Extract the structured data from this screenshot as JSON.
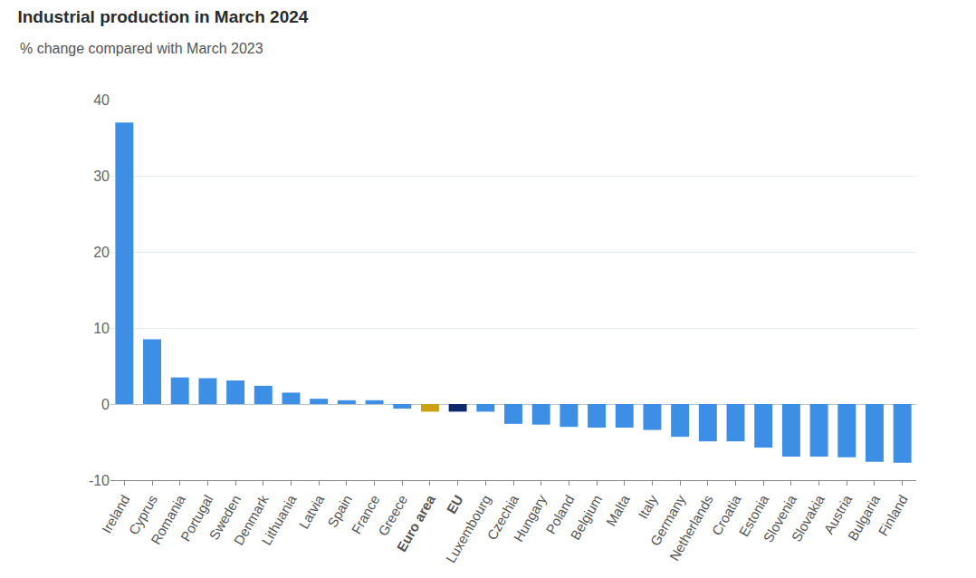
{
  "chart_data": {
    "type": "bar",
    "title": "Industrial production in March 2024",
    "subtitle": "% change compared with March 2023",
    "categories": [
      "Ireland",
      "Cyprus",
      "Romania",
      "Portugal",
      "Sweden",
      "Denmark",
      "Lithuania",
      "Latvia",
      "Spain",
      "France",
      "Greece",
      "Euro area",
      "EU",
      "Luxembourg",
      "Czechia",
      "Hungary",
      "Poland",
      "Belgium",
      "Malta",
      "Italy",
      "Germany",
      "Netherlands",
      "Croatia",
      "Estonia",
      "Slovenia",
      "Slovakia",
      "Austria",
      "Bulgaria",
      "Finland"
    ],
    "values": [
      37.0,
      8.5,
      3.5,
      3.4,
      3.1,
      2.4,
      1.5,
      0.7,
      0.5,
      0.5,
      -0.6,
      -1.0,
      -1.0,
      -1.0,
      -2.6,
      -2.7,
      -3.0,
      -3.1,
      -3.1,
      -3.4,
      -4.3,
      -4.9,
      -4.9,
      -5.7,
      -6.9,
      -6.9,
      -7.0,
      -7.6,
      -7.7
    ],
    "colors": [
      "#3d8fe5",
      "#3d8fe5",
      "#3d8fe5",
      "#3d8fe5",
      "#3d8fe5",
      "#3d8fe5",
      "#3d8fe5",
      "#3d8fe5",
      "#3d8fe5",
      "#3d8fe5",
      "#3d8fe5",
      "#c9a313",
      "#0e2a6b",
      "#3d8fe5",
      "#3d8fe5",
      "#3d8fe5",
      "#3d8fe5",
      "#3d8fe5",
      "#3d8fe5",
      "#3d8fe5",
      "#3d8fe5",
      "#3d8fe5",
      "#3d8fe5",
      "#3d8fe5",
      "#3d8fe5",
      "#3d8fe5",
      "#3d8fe5",
      "#3d8fe5",
      "#3d8fe5"
    ],
    "ylim": [
      -10,
      40
    ],
    "yticks": [
      -10,
      0,
      10,
      20,
      30,
      40
    ],
    "grid": true
  }
}
